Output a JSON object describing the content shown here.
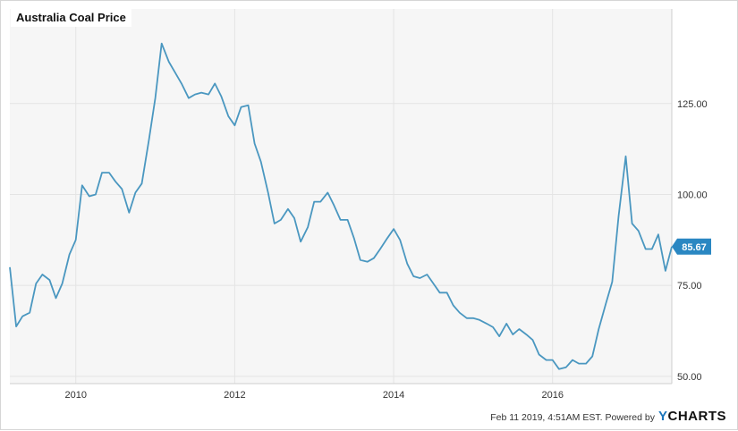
{
  "chart_data": {
    "type": "line",
    "title": "Australia Coal Price",
    "y_ticks": [
      50,
      75,
      100,
      125
    ],
    "y_tick_labels": [
      "50.00",
      "75.00",
      "100.00",
      "125.00"
    ],
    "x_ticks": [
      2010,
      2012,
      2014,
      2016
    ],
    "x_tick_labels": [
      "2010",
      "2012",
      "2014",
      "2016"
    ],
    "xlim": [
      2009.17,
      2017.5
    ],
    "ylim": [
      48,
      151
    ],
    "grid": true,
    "last_value_label": "85.67",
    "colors": {
      "line": "#4a97c0",
      "badge": "#2a87c2"
    },
    "series": [
      {
        "x": [
          2009.17,
          2009.25,
          2009.33,
          2009.42,
          2009.5,
          2009.58,
          2009.67,
          2009.75,
          2009.83,
          2009.92,
          2010.0,
          2010.08,
          2010.17,
          2010.25,
          2010.33,
          2010.42,
          2010.5,
          2010.58,
          2010.67,
          2010.75,
          2010.83,
          2010.92,
          2011.0,
          2011.08,
          2011.17,
          2011.25,
          2011.33,
          2011.42,
          2011.5,
          2011.58,
          2011.67,
          2011.75,
          2011.83,
          2011.92,
          2012.0,
          2012.08,
          2012.17,
          2012.25,
          2012.33,
          2012.42,
          2012.5,
          2012.58,
          2012.67,
          2012.75,
          2012.83,
          2012.92,
          2013.0,
          2013.08,
          2013.17,
          2013.25,
          2013.33,
          2013.42,
          2013.5,
          2013.58,
          2013.67,
          2013.75,
          2013.83,
          2013.92,
          2014.0,
          2014.08,
          2014.17,
          2014.25,
          2014.33,
          2014.42,
          2014.5,
          2014.58,
          2014.67,
          2014.75,
          2014.83,
          2014.92,
          2015.0,
          2015.08,
          2015.17,
          2015.25,
          2015.33,
          2015.42,
          2015.5,
          2015.58,
          2015.67,
          2015.75,
          2015.83,
          2015.92,
          2016.0,
          2016.08,
          2016.17,
          2016.25,
          2016.33,
          2016.42,
          2016.5,
          2016.58,
          2016.67,
          2016.75,
          2016.83,
          2016.92,
          2017.0,
          2017.08,
          2017.17,
          2017.25,
          2017.33,
          2017.42,
          2017.5
        ],
        "y": [
          80.0,
          63.7,
          66.5,
          67.5,
          75.5,
          78.0,
          76.5,
          71.5,
          75.5,
          83.5,
          87.5,
          102.5,
          99.5,
          100.0,
          106.0,
          106.0,
          103.5,
          101.5,
          95.0,
          100.5,
          103.0,
          115.0,
          126.5,
          141.5,
          136.5,
          133.5,
          130.5,
          126.5,
          127.5,
          128.0,
          127.5,
          130.5,
          127.0,
          121.5,
          119.0,
          124.0,
          124.5,
          114.0,
          109.0,
          100.5,
          92.0,
          93.0,
          96.0,
          93.5,
          87.0,
          91.0,
          98.0,
          98.0,
          100.5,
          97.0,
          93.0,
          93.0,
          88.0,
          82.0,
          81.5,
          82.5,
          85.0,
          88.0,
          90.5,
          87.5,
          81.0,
          77.5,
          77.0,
          78.0,
          75.5,
          73.0,
          73.0,
          69.5,
          67.5,
          66.0,
          66.0,
          65.5,
          64.5,
          63.5,
          61.0,
          64.5,
          61.5,
          63.0,
          61.5,
          60.0,
          56.0,
          54.5,
          54.5,
          52.0,
          52.5,
          54.5,
          53.5,
          53.5,
          55.5,
          63.0,
          70.0,
          76.0,
          94.0,
          110.5,
          92.0,
          90.0,
          85.0,
          85.0,
          89.0,
          79.0,
          85.67
        ]
      }
    ]
  },
  "footer": {
    "timestamp": "Feb 11 2019, 4:51AM EST.",
    "powered_by": "Powered by",
    "brand_y": "Y",
    "brand_rest": "CHARTS"
  }
}
